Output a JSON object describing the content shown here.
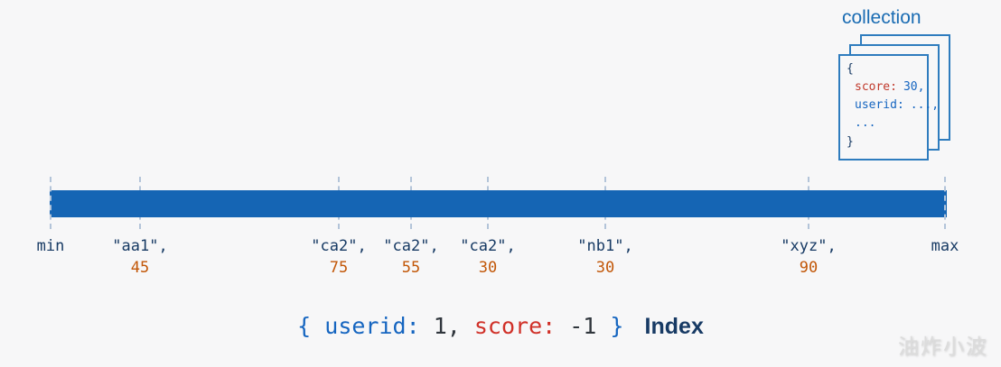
{
  "colors": {
    "background": "#f7f7f8",
    "bar": "#1565b4",
    "tick_line": "#b3c4d9",
    "key_text": "#173a64",
    "value_text": "#c25708",
    "caption_blue": "#1565c0",
    "caption_red": "#d03028",
    "caption_dark": "#30363d",
    "caption_index": "#173a64",
    "collection_border": "#2e7cbe",
    "collection_label": "#1a6cb3",
    "doc_brace": "#173a64",
    "doc_score_key": "#c0392b",
    "doc_value": "#1565c0",
    "watermark": "#dcdcdc"
  },
  "collection": {
    "label": "collection",
    "doc": {
      "open_brace": "{",
      "score_key": "score:",
      "score_value": "30,",
      "userid_key": "userid:",
      "userid_value": "...,",
      "ellipsis": "...",
      "close_brace": "}"
    }
  },
  "number_line": {
    "min_label": "min",
    "max_label": "max",
    "ticks": [
      {
        "key": "\"aa1\",",
        "value": "45"
      },
      {
        "key": "\"ca2\",",
        "value": "75"
      },
      {
        "key": "\"ca2\",",
        "value": "55"
      },
      {
        "key": "\"ca2\",",
        "value": "30"
      },
      {
        "key": "\"nb1\",",
        "value": "30"
      },
      {
        "key": "\"xyz\",",
        "value": "90"
      }
    ]
  },
  "index_caption": {
    "open": "{",
    "field1_key": "userid:",
    "field1_value": "1,",
    "field2_key": "score:",
    "field2_value": "-1",
    "close": "}",
    "suffix": "Index"
  },
  "watermark": "油炸小波"
}
